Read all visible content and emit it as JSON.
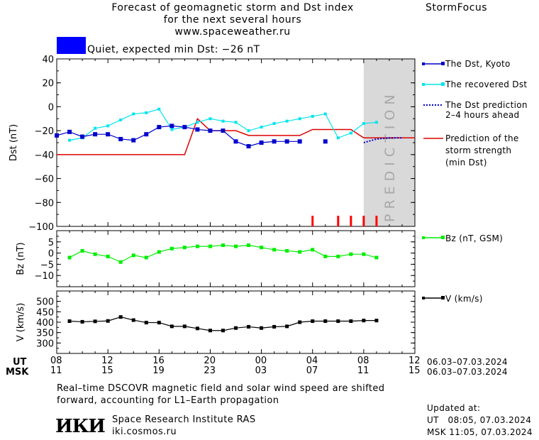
{
  "header": {
    "title_line1": "Forecast of geomagnetic storm and Dst index",
    "title_line2": "for the next several hours",
    "title_line3": "www.spaceweather.ru",
    "brand": "StormFocus"
  },
  "status": {
    "swatch_color": "#0000ff",
    "text": "Quiet, expected min Dst: −26 nT"
  },
  "legend": {
    "dst_kyoto": "The Dst, Kyoto",
    "recovered_dst": "The recovered Dst",
    "dst_prediction_1": "The Dst prediction",
    "dst_prediction_2": "2–4 hours ahead",
    "storm_strength_1": "Prediction of the",
    "storm_strength_2": "storm strength",
    "storm_strength_3": "(min Dst)",
    "bz": "Bz (nT, GSM)",
    "v": "V (km/s)"
  },
  "prediction_label": "PREDICTION",
  "chart_data": [
    {
      "type": "line",
      "ylabel": "Dst (nT)",
      "ylim": [
        -100,
        40
      ],
      "yticks": [
        "40",
        "20",
        "0",
        "−20",
        "−40",
        "−60",
        "−80",
        "−100"
      ],
      "xlim": [
        8,
        36
      ],
      "prediction_region": [
        32,
        36
      ],
      "colors": {
        "dst": "#0000cc",
        "recovered": "#00e5ee",
        "prediction": "#0000cc",
        "storm": "#dd0000",
        "marks": "#ff0000",
        "band": "#d9d9d9"
      },
      "series": [
        {
          "name": "The Dst, Kyoto",
          "x": [
            8,
            9,
            10,
            11,
            12,
            13,
            14,
            15,
            16,
            17,
            18,
            19,
            20,
            21,
            22,
            23,
            24,
            25,
            26,
            27,
            29
          ],
          "y": [
            -24,
            -21,
            -25,
            -23,
            -23,
            -27,
            -28,
            -23,
            -17,
            -16,
            -17,
            -19,
            -20,
            -20,
            -29,
            -33,
            -30,
            -29,
            -29,
            -29,
            -29
          ]
        },
        {
          "name": "The recovered Dst",
          "x": [
            9,
            10,
            11,
            12,
            13,
            14,
            15,
            16,
            17,
            18,
            19,
            20,
            21,
            22,
            23,
            24,
            25,
            26,
            27,
            28,
            29,
            30,
            31,
            32,
            33
          ],
          "y": [
            -28,
            -26,
            -18,
            -16,
            -11,
            -6,
            -5,
            -2,
            -19,
            -17,
            -13,
            -10,
            -12,
            -13,
            -20,
            -17,
            -14,
            -12,
            -10,
            -8,
            -6,
            -26,
            -22,
            -14,
            -13
          ]
        },
        {
          "name": "The Dst prediction",
          "x": [
            32,
            33,
            34,
            35
          ],
          "y": [
            -30,
            -27,
            -26,
            -26
          ]
        },
        {
          "name": "Prediction of the storm strength",
          "x": [
            8,
            18,
            19,
            20,
            22,
            23,
            27,
            28,
            31,
            32,
            36
          ],
          "y": [
            -40,
            -40,
            -10,
            -20,
            -20,
            -24,
            -24,
            -19,
            -19,
            -26,
            -26
          ]
        }
      ],
      "storm_marks_x": [
        28,
        30,
        31,
        32,
        33
      ]
    },
    {
      "type": "line",
      "ylabel": "Bz (nT)",
      "ylim": [
        -15,
        10
      ],
      "yticks": [
        "5",
        "0",
        "−5",
        "−10"
      ],
      "xlim": [
        8,
        36
      ],
      "series": [
        {
          "name": "Bz (nT, GSM)",
          "color": "#00ee00",
          "x": [
            9,
            10,
            11,
            12,
            13,
            14,
            15,
            16,
            17,
            18,
            19,
            20,
            21,
            22,
            23,
            24,
            25,
            26,
            27,
            28,
            29,
            30,
            31,
            32,
            33,
            34
          ],
          "y": [
            -2,
            1,
            -0.5,
            -1.5,
            -4,
            -1,
            -2,
            0.5,
            2,
            2.5,
            3,
            3,
            3.5,
            3,
            3.5,
            2.5,
            1.5,
            1,
            0.5,
            1.5,
            -1.5,
            -1.5,
            -0.5,
            -0.5,
            -2,
            null
          ]
        }
      ]
    },
    {
      "type": "line",
      "ylabel": "V (km/s)",
      "ylim": [
        250,
        550
      ],
      "yticks": [
        "500",
        "450",
        "400",
        "350",
        "300"
      ],
      "xlim": [
        8,
        36
      ],
      "series": [
        {
          "name": "V (km/s)",
          "color": "#000000",
          "x": [
            9,
            10,
            11,
            12,
            13,
            14,
            15,
            16,
            17,
            18,
            19,
            20,
            21,
            22,
            23,
            24,
            25,
            26,
            27,
            28,
            29,
            30,
            31,
            32,
            33,
            34
          ],
          "y": [
            405,
            402,
            404,
            406,
            425,
            410,
            398,
            398,
            380,
            380,
            370,
            360,
            360,
            372,
            378,
            372,
            378,
            380,
            400,
            405,
            405,
            405,
            405,
            408,
            408,
            null
          ]
        }
      ]
    }
  ],
  "time_axis": {
    "ut_label": "UT",
    "msk_label": "MSK",
    "ut_ticks": [
      "08",
      "12",
      "16",
      "20",
      "00",
      "04",
      "08",
      "12"
    ],
    "msk_ticks": [
      "11",
      "15",
      "19",
      "23",
      "03",
      "07",
      "11",
      "15"
    ],
    "ut_range": "06.03–07.03.2024",
    "msk_range": "06.03–07.03.2024"
  },
  "footer": {
    "note_line1": "Real–time DSCOVR magnetic field and solar wind speed are shifted",
    "note_line2": "forward, accounting for L1–Earth propagation",
    "logo_text": "ИКИ",
    "institute": "Space Research Institute RAS",
    "site": "iki.cosmos.ru",
    "updated_label": "Updated at:",
    "updated_ut": "UT   08:05, 07.03.2024",
    "updated_msk": "MSK 11:05, 07.03.2024"
  }
}
